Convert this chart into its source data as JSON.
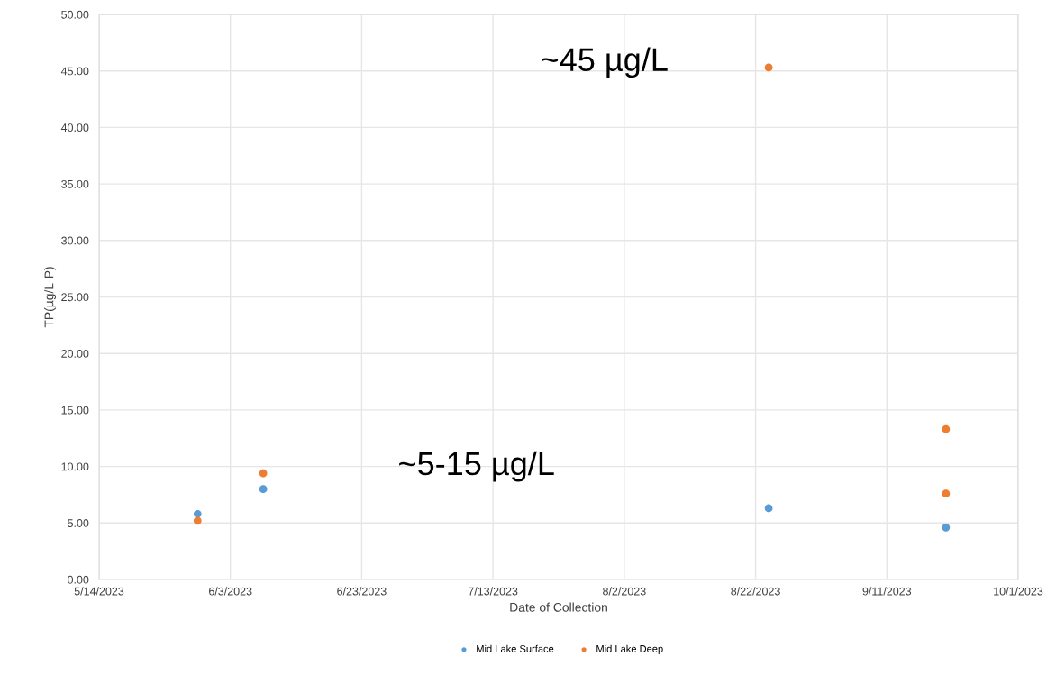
{
  "chart_data": {
    "type": "scatter",
    "xlabel": "Date of Collection",
    "ylabel": "TP(µg/L-P)",
    "xlim": [
      "2023-05-14",
      "2023-10-01"
    ],
    "xticks": [
      {
        "value": "2023-05-14",
        "label": "5/14/2023"
      },
      {
        "value": "2023-06-03",
        "label": "6/3/2023"
      },
      {
        "value": "2023-06-23",
        "label": "6/23/2023"
      },
      {
        "value": "2023-07-13",
        "label": "7/13/2023"
      },
      {
        "value": "2023-08-02",
        "label": "8/2/2023"
      },
      {
        "value": "2023-08-22",
        "label": "8/22/2023"
      },
      {
        "value": "2023-09-11",
        "label": "9/11/2023"
      },
      {
        "value": "2023-10-01",
        "label": "10/1/2023"
      }
    ],
    "ylim": [
      0,
      50
    ],
    "yticks": [
      {
        "value": 0,
        "label": "0.00"
      },
      {
        "value": 5,
        "label": "5.00"
      },
      {
        "value": 10,
        "label": "10.00"
      },
      {
        "value": 15,
        "label": "15.00"
      },
      {
        "value": 20,
        "label": "20.00"
      },
      {
        "value": 25,
        "label": "25.00"
      },
      {
        "value": 30,
        "label": "30.00"
      },
      {
        "value": 35,
        "label": "35.00"
      },
      {
        "value": 40,
        "label": "40.00"
      },
      {
        "value": 45,
        "label": "45.00"
      },
      {
        "value": 50,
        "label": "50.00"
      }
    ],
    "grid": true,
    "marker": "circle",
    "legend": "bottom",
    "series": [
      {
        "name": "Mid Lake Surface",
        "color": "#5b9bd5",
        "x": [
          "2023-05-29",
          "2023-06-08",
          "2023-08-24",
          "2023-09-20"
        ],
        "values": [
          5.8,
          8.0,
          6.3,
          4.6
        ]
      },
      {
        "name": "Mid Lake Deep",
        "color": "#ed7d31",
        "x": [
          "2023-05-29",
          "2023-06-08",
          "2023-08-24",
          "2023-09-20",
          "2023-09-20"
        ],
        "values": [
          5.2,
          9.4,
          45.3,
          13.3,
          7.6
        ]
      }
    ],
    "annotations": [
      "~45 µg/L",
      "~5-15 µg/L"
    ]
  }
}
